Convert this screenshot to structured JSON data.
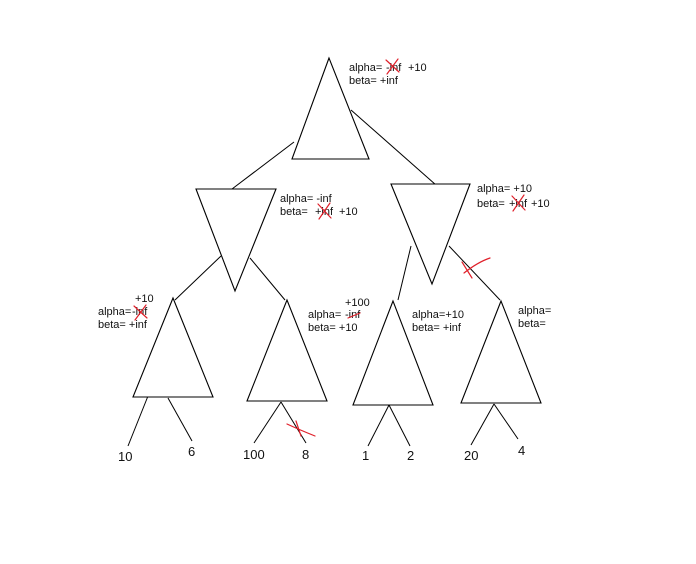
{
  "nodes": {
    "root": {
      "alpha_label": "alpha=",
      "alpha_old": "-inf",
      "alpha_new": "+10",
      "beta_line": "beta= +inf"
    },
    "min_left": {
      "alpha_line": "alpha= -inf",
      "beta_label": "beta=",
      "beta_old": "+inf",
      "beta_new": "+10"
    },
    "min_right": {
      "alpha_line": "alpha= +10",
      "beta_label": "beta=",
      "beta_old": "+inf",
      "beta_new": "+10"
    },
    "max_1": {
      "alpha_new": "+10",
      "alpha_label": "alpha=",
      "alpha_old": "-inf",
      "beta_line": "beta=  +inf"
    },
    "max_2": {
      "alpha_new": "+100",
      "alpha_label": "alpha=",
      "alpha_old": "-inf",
      "beta_line": "beta= +10"
    },
    "max_3": {
      "alpha_line": "alpha=+10",
      "beta_line": "beta= +inf"
    },
    "max_4": {
      "alpha_line": "alpha=",
      "beta_line": "beta="
    }
  },
  "leaves": [
    "10",
    "6",
    "100",
    "8",
    "1",
    "2",
    "20",
    "4"
  ],
  "colors": {
    "line": "#000000",
    "annotation": "#e0202a"
  }
}
